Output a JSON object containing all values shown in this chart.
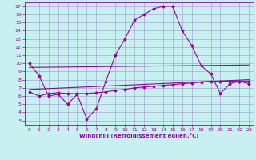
{
  "xlabel": "Windchill (Refroidissement éolien,°C)",
  "bg_color": "#c8f0f0",
  "grid_color": "#9999cc",
  "line_color": "#990099",
  "xlim": [
    -0.5,
    23.5
  ],
  "ylim": [
    2.5,
    17.5
  ],
  "yticks": [
    3,
    4,
    5,
    6,
    7,
    8,
    9,
    10,
    11,
    12,
    13,
    14,
    15,
    16,
    17
  ],
  "xticks": [
    0,
    1,
    2,
    3,
    4,
    5,
    6,
    7,
    8,
    9,
    10,
    11,
    12,
    13,
    14,
    15,
    16,
    17,
    18,
    19,
    20,
    21,
    22,
    23
  ],
  "line1_x": [
    0,
    1,
    2,
    3,
    4,
    5,
    6,
    7,
    8,
    9,
    10,
    11,
    12,
    13,
    14,
    15,
    16,
    17,
    18,
    19,
    20,
    21,
    22,
    23
  ],
  "line1_y": [
    10.0,
    8.5,
    6.0,
    6.2,
    5.0,
    6.2,
    3.2,
    4.4,
    7.8,
    11.0,
    13.0,
    15.3,
    16.0,
    16.7,
    17.0,
    17.0,
    14.0,
    12.2,
    9.7,
    8.7,
    6.3,
    7.5,
    7.8,
    7.5
  ],
  "line2_x": [
    0,
    1,
    2,
    3,
    4,
    5,
    6,
    7,
    8,
    9,
    10,
    11,
    12,
    13,
    14,
    15,
    16,
    17,
    18,
    19,
    20,
    21,
    22,
    23
  ],
  "line2_y": [
    6.5,
    6.0,
    6.3,
    6.4,
    6.3,
    6.3,
    6.3,
    6.4,
    6.5,
    6.7,
    6.8,
    7.0,
    7.1,
    7.2,
    7.3,
    7.4,
    7.5,
    7.6,
    7.7,
    7.8,
    7.8,
    7.8,
    7.8,
    7.8
  ],
  "line3_x": [
    0,
    23
  ],
  "line3_y": [
    6.8,
    8.0
  ],
  "line4_x": [
    0,
    23
  ],
  "line4_y": [
    9.5,
    9.8
  ]
}
